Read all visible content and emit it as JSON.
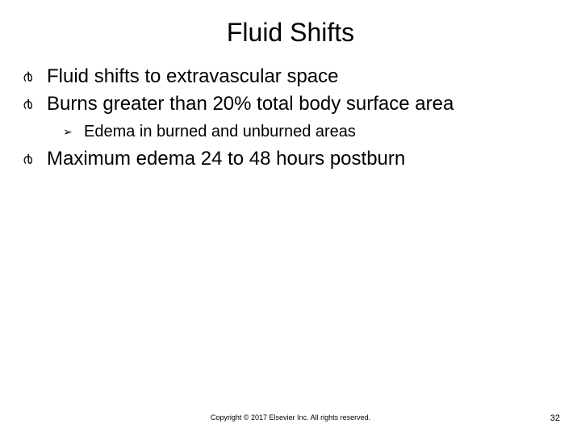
{
  "slide": {
    "title": "Fluid Shifts",
    "bullets": [
      {
        "text": "Fluid shifts to extravascular space",
        "sub": []
      },
      {
        "text": "Burns greater than 20% total body surface area",
        "sub": [
          "Edema in burned and unburned areas"
        ]
      },
      {
        "text": "Maximum edema 24 to 48 hours postburn",
        "sub": []
      }
    ],
    "bullet_glyph": "൪",
    "sub_glyph": "➢",
    "copyright": "Copyright © 2017 Elsevier Inc. All rights reserved.",
    "page_number": "32"
  },
  "style": {
    "background_color": "#ffffff",
    "text_color": "#000000",
    "title_fontsize": 32,
    "bullet_fontsize": 24,
    "sub_fontsize": 20,
    "footer_fontsize": 9,
    "pagenum_fontsize": 11
  }
}
